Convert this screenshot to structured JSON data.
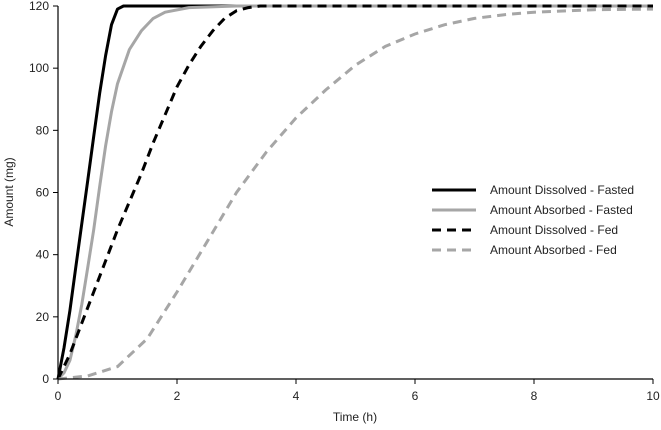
{
  "chart_data": {
    "type": "line",
    "title": "",
    "xlabel": "Time (h)",
    "ylabel": "Amount (mg)",
    "xlim": [
      0,
      10
    ],
    "ylim": [
      0,
      120
    ],
    "xticks": [
      0,
      2,
      4,
      6,
      8,
      10
    ],
    "yticks": [
      0,
      20,
      40,
      60,
      80,
      100,
      120
    ],
    "grid": false,
    "legend_position": "right",
    "series": [
      {
        "name": "Amount Dissolved - Fasted",
        "color": "#000000",
        "style": "solid",
        "points": [
          [
            0,
            0
          ],
          [
            0.1,
            10
          ],
          [
            0.2,
            22
          ],
          [
            0.3,
            36
          ],
          [
            0.4,
            50
          ],
          [
            0.5,
            64
          ],
          [
            0.6,
            78
          ],
          [
            0.7,
            92
          ],
          [
            0.8,
            104
          ],
          [
            0.9,
            114
          ],
          [
            1.0,
            119
          ],
          [
            1.1,
            120
          ],
          [
            10,
            120
          ]
        ]
      },
      {
        "name": "Amount Absorbed - Fasted",
        "color": "#a6a6a6",
        "style": "solid",
        "points": [
          [
            0,
            0
          ],
          [
            0.1,
            2
          ],
          [
            0.2,
            6
          ],
          [
            0.3,
            14
          ],
          [
            0.4,
            24
          ],
          [
            0.5,
            36
          ],
          [
            0.6,
            48
          ],
          [
            0.7,
            62
          ],
          [
            0.8,
            75
          ],
          [
            0.9,
            86
          ],
          [
            1.0,
            95
          ],
          [
            1.2,
            106
          ],
          [
            1.4,
            112
          ],
          [
            1.6,
            116
          ],
          [
            1.8,
            118
          ],
          [
            2.2,
            119.5
          ],
          [
            3,
            120
          ],
          [
            10,
            120
          ]
        ]
      },
      {
        "name": "Amount Dissolved - Fed",
        "color": "#000000",
        "style": "dashed",
        "points": [
          [
            0,
            0
          ],
          [
            0.2,
            8
          ],
          [
            0.4,
            18
          ],
          [
            0.6,
            28
          ],
          [
            0.8,
            38
          ],
          [
            1.0,
            48
          ],
          [
            1.2,
            57
          ],
          [
            1.4,
            66
          ],
          [
            1.6,
            76
          ],
          [
            1.8,
            85
          ],
          [
            2.0,
            94
          ],
          [
            2.2,
            101
          ],
          [
            2.4,
            107
          ],
          [
            2.6,
            112
          ],
          [
            2.8,
            116
          ],
          [
            3.0,
            118.5
          ],
          [
            3.2,
            119.5
          ],
          [
            3.4,
            120
          ],
          [
            10,
            120
          ]
        ]
      },
      {
        "name": "Amount Absorbed - Fed",
        "color": "#a6a6a6",
        "style": "dashed",
        "points": [
          [
            0,
            0
          ],
          [
            0.5,
            1
          ],
          [
            1.0,
            4
          ],
          [
            1.5,
            13
          ],
          [
            2.0,
            28
          ],
          [
            2.5,
            44
          ],
          [
            3.0,
            60
          ],
          [
            3.5,
            73
          ],
          [
            4.0,
            84
          ],
          [
            4.5,
            93
          ],
          [
            5.0,
            101
          ],
          [
            5.5,
            107
          ],
          [
            6.0,
            111
          ],
          [
            6.5,
            114
          ],
          [
            7.0,
            116
          ],
          [
            7.5,
            117.2
          ],
          [
            8.0,
            118
          ],
          [
            9.0,
            118.8
          ],
          [
            10,
            119
          ]
        ]
      }
    ]
  }
}
